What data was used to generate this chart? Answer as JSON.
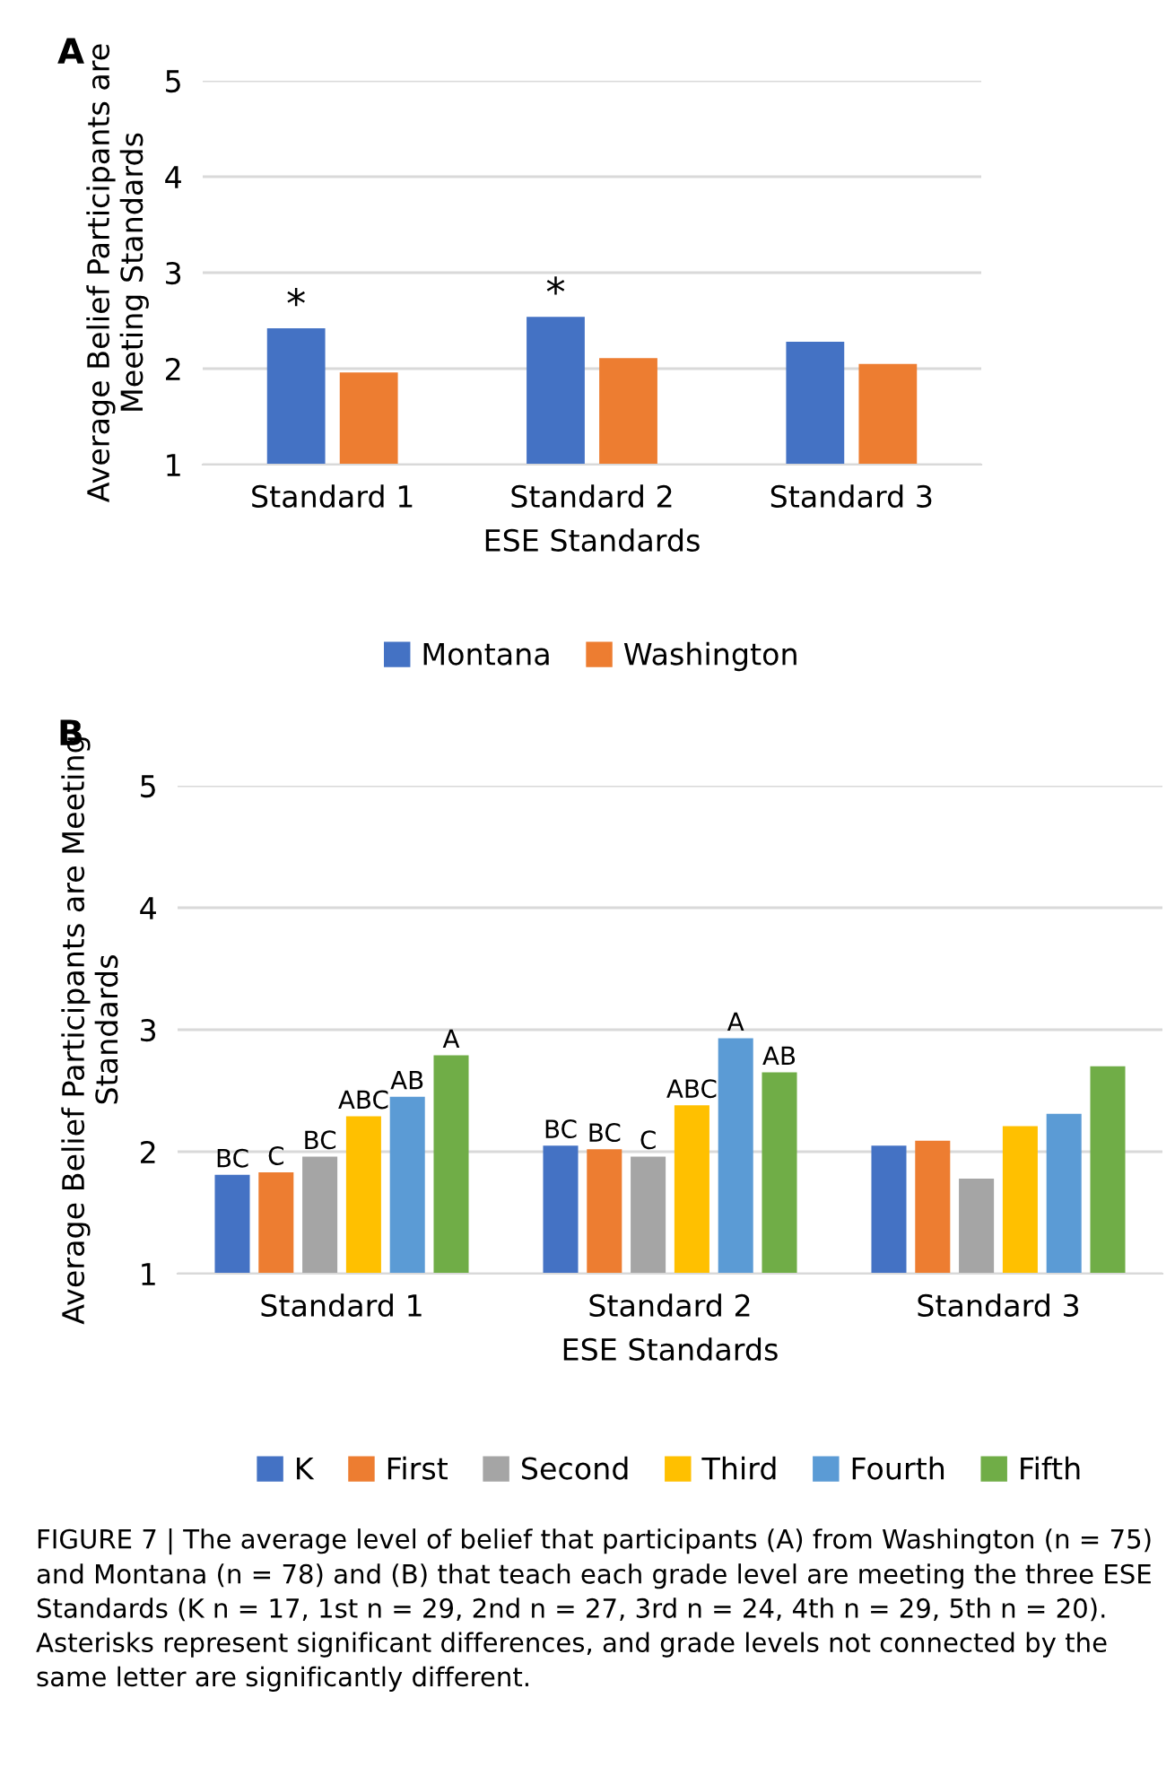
{
  "chart_data": [
    {
      "type": "bar",
      "title": "A",
      "xlabel": "ESE Standards",
      "ylabel": "Average Belief Participants are\nMeeting Standards",
      "categories": [
        "Standard 1",
        "Standard 2",
        "Standard 3"
      ],
      "series": [
        {
          "name": "Montana",
          "color": "#4472c4",
          "values": [
            2.42,
            2.54,
            2.28
          ],
          "value_labels": [
            "*",
            "*",
            null
          ]
        },
        {
          "name": "Washington",
          "color": "#ed7d31",
          "values": [
            1.96,
            2.11,
            2.05
          ]
        }
      ],
      "ylim": [
        1,
        5
      ],
      "yticks": [
        1,
        2,
        3,
        4,
        5
      ],
      "grid": "y",
      "legend": "bottom"
    },
    {
      "type": "bar",
      "title": "B",
      "xlabel": "ESE Standards",
      "ylabel": "Average Belief Participants are Meeting\nStandards",
      "categories": [
        "Standard 1",
        "Standard 2",
        "Standard 3"
      ],
      "series": [
        {
          "name": "K",
          "color": "#4472c4",
          "values": [
            1.81,
            2.05,
            2.05
          ],
          "value_labels": [
            "BC",
            "BC",
            null
          ]
        },
        {
          "name": "First",
          "color": "#ed7d31",
          "values": [
            1.83,
            2.02,
            2.09
          ],
          "value_labels": [
            "C",
            "BC",
            null
          ]
        },
        {
          "name": "Second",
          "color": "#a5a5a5",
          "values": [
            1.96,
            1.96,
            1.78
          ],
          "value_labels": [
            "BC",
            "C",
            null
          ]
        },
        {
          "name": "Third",
          "color": "#ffc000",
          "values": [
            2.29,
            2.38,
            2.21
          ],
          "value_labels": [
            "ABC",
            "ABC",
            null
          ]
        },
        {
          "name": "Fourth",
          "color": "#5b9bd5",
          "values": [
            2.45,
            2.93,
            2.31
          ],
          "value_labels": [
            "AB",
            "A",
            null
          ]
        },
        {
          "name": "Fifth",
          "color": "#70ad47",
          "values": [
            2.79,
            2.65,
            2.7
          ],
          "value_labels": [
            "A",
            "AB",
            null
          ]
        }
      ],
      "ylim": [
        1,
        5
      ],
      "yticks": [
        1,
        2,
        3,
        4,
        5
      ],
      "grid": "y",
      "legend": "bottom",
      "annotations": [
        "FIGURE 7 | The average level of belief that participants (A) from Washington (n = 75) and Montana (n = 78) and (B) that teach each grade level are meeting the three ESE Standards (K n = 17, 1st n = 29, 2nd n = 27, 3rd n = 24, 4th n = 29, 5th n = 20). Asterisks represent significant differences, and grade levels not connected by the same letter are significantly different."
      ]
    }
  ]
}
